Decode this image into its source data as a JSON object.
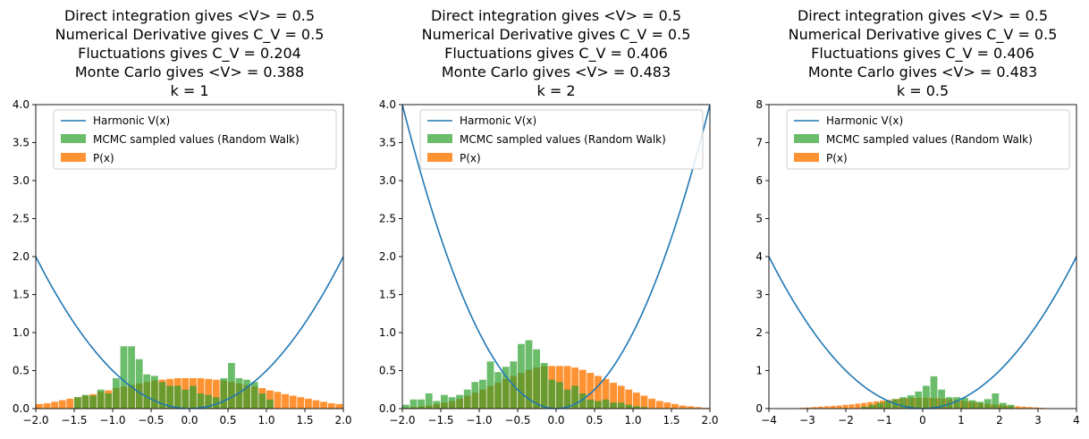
{
  "legend_labels": {
    "line": "Harmonic V(x)",
    "mcmc": "MCMC sampled values (Random Walk)",
    "p": "P(x)"
  },
  "colors": {
    "line": "#1f77b4",
    "mcmc": "#2ca02c",
    "p": "#ff7f0e"
  },
  "chart_data": [
    {
      "type": "bar",
      "title_lines": [
        "Direct integration gives <V> = 0.5",
        "Numerical Derivative gives C_V = 0.5",
        "Fluctuations gives C_V = 0.204",
        "Monte Carlo gives <V> = 0.388",
        "k = 1"
      ],
      "k": 1,
      "xlim": [
        -2,
        2
      ],
      "ylim": [
        0,
        4
      ],
      "xticks": [
        "−2.0",
        "−1.5",
        "−1.0",
        "−0.5",
        "0.0",
        "0.5",
        "1.0",
        "1.5",
        "2.0"
      ],
      "yticks": [
        "0.0",
        "0.5",
        "1.0",
        "1.5",
        "2.0",
        "2.5",
        "3.0",
        "3.5",
        "4.0"
      ],
      "xtick_values": [
        -2,
        -1.5,
        -1,
        -0.5,
        0,
        0.5,
        1,
        1.5,
        2
      ],
      "ytick_values": [
        0,
        0.5,
        1,
        1.5,
        2,
        2.5,
        3,
        3.5,
        4
      ],
      "p_bins": {
        "start": -2,
        "width": 0.1,
        "values": [
          0.06,
          0.07,
          0.09,
          0.11,
          0.13,
          0.15,
          0.17,
          0.19,
          0.22,
          0.24,
          0.27,
          0.29,
          0.31,
          0.33,
          0.35,
          0.37,
          0.38,
          0.39,
          0.4,
          0.4,
          0.4,
          0.4,
          0.39,
          0.38,
          0.37,
          0.35,
          0.33,
          0.31,
          0.29,
          0.27,
          0.24,
          0.22,
          0.19,
          0.17,
          0.15,
          0.13,
          0.11,
          0.09,
          0.07,
          0.06
        ]
      },
      "mcmc_bins": {
        "start": -1.5,
        "width": 0.1,
        "values": [
          0.15,
          0.18,
          0.17,
          0.25,
          0.2,
          0.4,
          0.82,
          0.82,
          0.65,
          0.45,
          0.43,
          0.35,
          0.3,
          0.3,
          0.25,
          0.3,
          0.2,
          0.18,
          0.15,
          0.4,
          0.6,
          0.4,
          0.38,
          0.35,
          0.2,
          0.12
        ]
      }
    },
    {
      "type": "bar",
      "title_lines": [
        "Direct integration gives <V> = 0.5",
        "Numerical Derivative gives C_V = 0.5",
        "Fluctuations gives C_V = 0.406",
        "Monte Carlo gives <V> = 0.483",
        "k = 2"
      ],
      "k": 2,
      "xlim": [
        -2,
        2
      ],
      "ylim": [
        0,
        4
      ],
      "xticks": [
        "−2.0",
        "−1.5",
        "−1.0",
        "−0.5",
        "0.0",
        "0.5",
        "1.0",
        "1.5",
        "2.0"
      ],
      "yticks": [
        "0.0",
        "0.5",
        "1.0",
        "1.5",
        "2.0",
        "2.5",
        "3.0",
        "3.5",
        "4.0"
      ],
      "xtick_values": [
        -2,
        -1.5,
        -1,
        -0.5,
        0,
        0.5,
        1,
        1.5,
        2
      ],
      "ytick_values": [
        0,
        0.5,
        1,
        1.5,
        2,
        2.5,
        3,
        3.5,
        4
      ],
      "p_bins": {
        "start": -2,
        "width": 0.1,
        "values": [
          0.01,
          0.02,
          0.03,
          0.04,
          0.06,
          0.08,
          0.1,
          0.13,
          0.17,
          0.21,
          0.25,
          0.3,
          0.34,
          0.39,
          0.43,
          0.47,
          0.51,
          0.54,
          0.56,
          0.56,
          0.56,
          0.56,
          0.54,
          0.51,
          0.47,
          0.43,
          0.39,
          0.34,
          0.3,
          0.25,
          0.21,
          0.17,
          0.13,
          0.1,
          0.08,
          0.06,
          0.04,
          0.03,
          0.02,
          0.01
        ]
      },
      "mcmc_bins": {
        "start": -2,
        "width": 0.1,
        "values": [
          0.05,
          0.12,
          0.12,
          0.2,
          0.1,
          0.18,
          0.15,
          0.18,
          0.25,
          0.35,
          0.38,
          0.62,
          0.48,
          0.55,
          0.62,
          0.85,
          0.9,
          0.78,
          0.6,
          0.38,
          0.35,
          0.25,
          0.3,
          0.2,
          0.12,
          0.1,
          0.12,
          0.08,
          0.08,
          0.05,
          0.03,
          0.02
        ]
      }
    },
    {
      "type": "bar",
      "title_lines": [
        "Direct integration gives <V> = 0.5",
        "Numerical Derivative gives C_V = 0.5",
        "Fluctuations gives C_V = 0.406",
        "Monte Carlo gives <V> = 0.483",
        "k = 0.5"
      ],
      "k": 0.5,
      "xlim": [
        -4,
        4
      ],
      "ylim": [
        0,
        8
      ],
      "xticks": [
        "−4",
        "−3",
        "−2",
        "−1",
        "0",
        "1",
        "2",
        "3",
        "4"
      ],
      "yticks": [
        "0",
        "1",
        "2",
        "3",
        "4",
        "5",
        "6",
        "7",
        "8"
      ],
      "xtick_values": [
        -4,
        -3,
        -2,
        -1,
        0,
        1,
        2,
        3,
        4
      ],
      "ytick_values": [
        0,
        1,
        2,
        3,
        4,
        5,
        6,
        7,
        8
      ],
      "p_bins": {
        "start": -3.2,
        "width": 0.16,
        "values": [
          0.02,
          0.03,
          0.04,
          0.05,
          0.06,
          0.07,
          0.08,
          0.1,
          0.11,
          0.13,
          0.15,
          0.17,
          0.19,
          0.21,
          0.23,
          0.25,
          0.26,
          0.27,
          0.28,
          0.28,
          0.28,
          0.28,
          0.27,
          0.26,
          0.25,
          0.23,
          0.21,
          0.19,
          0.17,
          0.15,
          0.13,
          0.11,
          0.1,
          0.08,
          0.07,
          0.06,
          0.05,
          0.04,
          0.03,
          0.02
        ]
      },
      "mcmc_bins": {
        "start": -1.6,
        "width": 0.2,
        "values": [
          0.05,
          0.1,
          0.15,
          0.2,
          0.25,
          0.3,
          0.35,
          0.45,
          0.6,
          0.85,
          0.5,
          0.3,
          0.3,
          0.28,
          0.22,
          0.18,
          0.25,
          0.4,
          0.15,
          0.1
        ]
      }
    }
  ]
}
